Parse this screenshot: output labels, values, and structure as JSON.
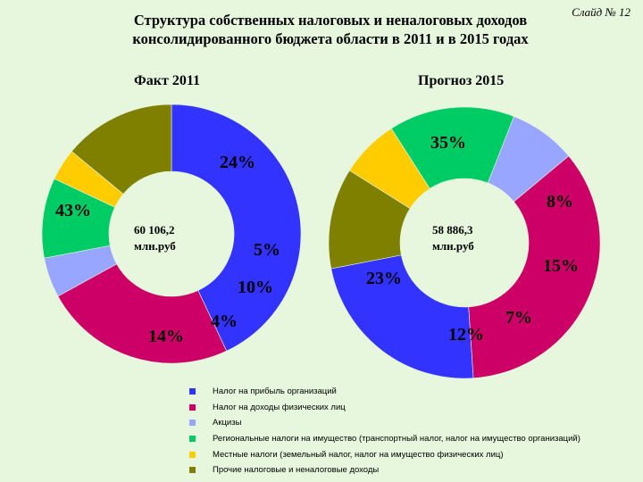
{
  "slide_label": "Слайд № 12",
  "title_line1": "Структура собственных налоговых и неналоговых доходов",
  "title_line2": "консолидированного бюджета области в 2011 и в 2015 годах",
  "chart_data": [
    {
      "type": "pie",
      "subtitle": "Факт 2011",
      "center_line1": "60 106,2",
      "center_line2": "млн.руб",
      "categories": [
        "Налог на прибыль организаций",
        "Налог на доходы физических лиц",
        "Акцизы",
        "Региональные налоги на имущество (транспортный налог, налог на имущество организаций)",
        "Местные налоги (земельный налог, налог на имущество физических лиц)",
        "Прочие налоговые и неналоговые доходы"
      ],
      "values": [
        43,
        24,
        5,
        10,
        4,
        14
      ],
      "labels": [
        "43%",
        "24%",
        "5%",
        "10%",
        "4%",
        "14%"
      ]
    },
    {
      "type": "pie",
      "subtitle": "Прогноз 2015",
      "center_line1": "58 886,3",
      "center_line2": "млн.руб",
      "categories": [
        "Налог на прибыль организаций",
        "Налог на доходы физических лиц",
        "Акцизы",
        "Региональные налоги на имущество (транспортный налог, налог на имущество организаций)",
        "Местные налоги (земельный налог, налог на имущество физических лиц)",
        "Прочие налоговые и неналоговые доходы"
      ],
      "values": [
        23,
        35,
        8,
        15,
        7,
        12
      ],
      "labels": [
        "23%",
        "35%",
        "8%",
        "15%",
        "7%",
        "12%"
      ]
    }
  ],
  "colors": [
    "#3333ff",
    "#cc0066",
    "#99a6ff",
    "#00cc66",
    "#ffcc00",
    "#808000"
  ],
  "legend": [
    "Налог на прибыль организаций",
    "Налог на доходы физических лиц",
    "Акцизы",
    "Региональные налоги на имущество (транспортный налог, налог на имущество организаций)",
    "Местные налоги (земельный налог, налог на имущество физических лиц)",
    "Прочие налоговые и неналоговые доходы"
  ]
}
